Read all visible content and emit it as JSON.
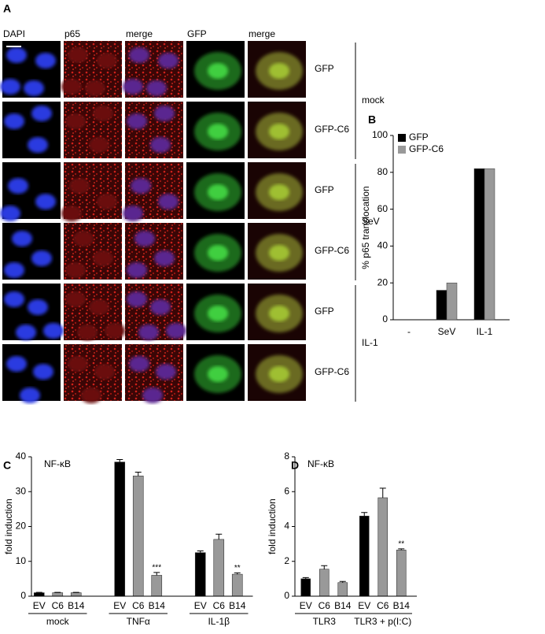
{
  "panel_labels": [
    "A",
    "B",
    "C",
    "D"
  ],
  "panel_a": {
    "columns": [
      "DAPI",
      "p65",
      "merge",
      "GFP",
      "merge"
    ],
    "rows": [
      "GFP",
      "GFP-C6",
      "GFP",
      "GFP-C6",
      "GFP",
      "GFP-C6"
    ],
    "conditions": [
      "mock",
      "SeV",
      "IL-1"
    ]
  },
  "chart_data": [
    {
      "type": "bar",
      "categories": [
        "-",
        "SeV",
        "IL-1"
      ],
      "y_label": "% p65 translocation",
      "series": [
        {
          "name": "GFP",
          "color": "#000000",
          "values": [
            0,
            16,
            82
          ]
        },
        {
          "name": "GFP-C6",
          "color": "#999999",
          "values": [
            0,
            20,
            82
          ]
        }
      ],
      "ylim": [
        0,
        100
      ],
      "yticks": [
        0,
        20,
        40,
        60,
        80,
        100
      ],
      "legend": "top-left"
    },
    {
      "type": "grouped-bar",
      "title": "NF-κB",
      "y_label": "fold induction",
      "colors": [
        "#000000",
        "#999999",
        "#999999"
      ],
      "groups": [
        {
          "name": "mock",
          "categories": [
            "EV",
            "C6",
            "B14"
          ],
          "values": [
            1,
            1,
            1
          ],
          "errors": [
            0.1,
            0.1,
            0.1
          ],
          "significance": [
            null,
            null,
            null
          ]
        },
        {
          "name": "TNFα",
          "categories": [
            "EV",
            "C6",
            "B14"
          ],
          "values": [
            38.5,
            34.5,
            6
          ],
          "errors": [
            0.7,
            1.1,
            0.8
          ],
          "significance": [
            null,
            null,
            "***"
          ]
        },
        {
          "name": "IL-1β",
          "categories": [
            "EV",
            "C6",
            "B14"
          ],
          "values": [
            12.5,
            16.3,
            6.3
          ],
          "errors": [
            0.5,
            1.5,
            0.4
          ],
          "significance": [
            null,
            null,
            "**"
          ]
        }
      ],
      "ylim": [
        0,
        40
      ],
      "yticks": [
        0,
        10,
        20,
        30,
        40
      ]
    },
    {
      "type": "grouped-bar",
      "title": "NF-κB",
      "y_label": "fold induction",
      "colors": [
        "#000000",
        "#999999",
        "#999999"
      ],
      "groups": [
        {
          "name": "TLR3",
          "categories": [
            "EV",
            "C6",
            "B14"
          ],
          "values": [
            1.0,
            1.55,
            0.78
          ],
          "errors": [
            0.07,
            0.2,
            0.07
          ],
          "significance": [
            null,
            null,
            null
          ]
        },
        {
          "name": "TLR3 + p(I:C)",
          "categories": [
            "EV",
            "C6",
            "B14"
          ],
          "values": [
            4.6,
            5.65,
            2.65
          ],
          "errors": [
            0.2,
            0.55,
            0.07
          ],
          "significance": [
            null,
            null,
            "**"
          ]
        }
      ],
      "ylim": [
        0,
        8
      ],
      "yticks": [
        0,
        2,
        4,
        6,
        8
      ]
    }
  ]
}
